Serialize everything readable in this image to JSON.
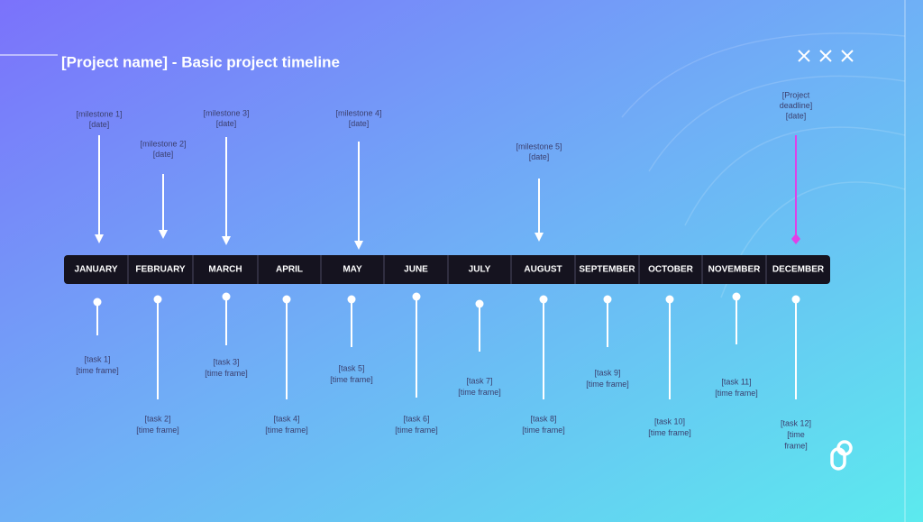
{
  "header": {
    "title": "[Project name] - Basic project timeline"
  },
  "months": [
    "JANUARY",
    "FEBRUARY",
    "MARCH",
    "APRIL",
    "MAY",
    "JUNE",
    "JULY",
    "AUGUST",
    "SEPTEMBER",
    "OCTOBER",
    "NOVEMBER",
    "DECEMBER"
  ],
  "milestones": [
    {
      "lines": [
        "[milestone 1]",
        "[date]"
      ]
    },
    {
      "lines": [
        "[milestone 2]",
        "[date]"
      ]
    },
    {
      "lines": [
        "[milestone 3]",
        "[date]"
      ]
    },
    {
      "lines": [
        "[milestone 4]",
        "[date]"
      ]
    },
    {
      "lines": [
        "[milestone 5]",
        "[date]"
      ]
    },
    {
      "lines": [
        "[Project",
        "deadline]",
        "[date]"
      ]
    }
  ],
  "tasks": [
    {
      "lines": [
        "[task 1]",
        "[time frame]"
      ]
    },
    {
      "lines": [
        "[task 2]",
        "[time frame]"
      ]
    },
    {
      "lines": [
        "[task 3]",
        "[time frame]"
      ]
    },
    {
      "lines": [
        "[task 4]",
        "[time frame]"
      ]
    },
    {
      "lines": [
        "[task 5]",
        "[time frame]"
      ]
    },
    {
      "lines": [
        "[task 6]",
        "[time frame]"
      ]
    },
    {
      "lines": [
        "[task 7]",
        "[time frame]"
      ]
    },
    {
      "lines": [
        "[task 8]",
        "[time frame]"
      ]
    },
    {
      "lines": [
        "[task 9]",
        "[time frame]"
      ]
    },
    {
      "lines": [
        "[task 10]",
        "[time frame]"
      ]
    },
    {
      "lines": [
        "[task 11]",
        "[time frame]"
      ]
    },
    {
      "lines": [
        "[task 12]",
        "[time",
        "frame]"
      ]
    }
  ]
}
